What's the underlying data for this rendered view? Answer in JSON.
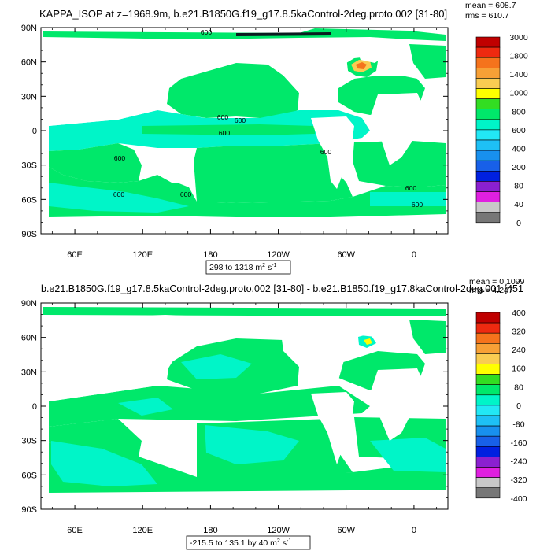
{
  "chart_data": [
    {
      "type": "contour-map",
      "title": "KAPPA_ISOP at z=1968.9m, b.e21.B1850G.f19_g17.8.5kaControl-2deg.proto.002 [31-80]",
      "stats": {
        "mean_label": "mean = 608.7",
        "rms_label": "rms = 610.7"
      },
      "x_ticks": [
        "60E",
        "120E",
        "180",
        "120W",
        "60W",
        "0"
      ],
      "y_ticks": [
        "90N",
        "60N",
        "30N",
        "0",
        "30S",
        "60S",
        "90S"
      ],
      "range_label": "298 to 1318 m",
      "range_units_sup": "2",
      "range_units_tail": " s",
      "range_units_exp": "-1",
      "contour_labels": [
        "600",
        "600",
        "600",
        "600",
        "600",
        "600",
        "600",
        "600",
        "600",
        "600"
      ],
      "colorbar": {
        "labels": [
          "3000",
          "1800",
          "1400",
          "1000",
          "800",
          "600",
          "400",
          "200",
          "80",
          "40",
          "0"
        ],
        "colors": [
          "#c00000",
          "#ee2a10",
          "#f5731c",
          "#f7a036",
          "#f9cc52",
          "#ffff00",
          "#33dd22",
          "#00e86a",
          "#00f5c8",
          "#22e8f5",
          "#1ec0f5",
          "#1890ee",
          "#1860e8",
          "#0020e0",
          "#8b20d0",
          "#e020e0",
          "#c8c8c8",
          "#777777"
        ]
      }
    },
    {
      "type": "contour-map",
      "title": "b.e21.B1850G.f19_g17.8.5kaControl-2deg.proto.002 [31-80] - b.e21.B1850.f19_g17.8kaControl-2deg.001 [451",
      "stats": {
        "mean_label": "mean = 0.1099",
        "rms_label": "rms = 4.247"
      },
      "x_ticks": [
        "60E",
        "120E",
        "180",
        "120W",
        "60W",
        "0"
      ],
      "y_ticks": [
        "90N",
        "60N",
        "30N",
        "0",
        "30S",
        "60S",
        "90S"
      ],
      "range_label": "-215.5 to 135.1 by 40 m",
      "range_units_sup": "2",
      "range_units_tail": " s",
      "range_units_exp": "-1",
      "colorbar": {
        "labels": [
          "400",
          "320",
          "240",
          "160",
          "80",
          "0",
          "-80",
          "-160",
          "-240",
          "-320",
          "-400"
        ],
        "colors": [
          "#c00000",
          "#ee2a10",
          "#f5731c",
          "#f7a036",
          "#f9cc52",
          "#ffff00",
          "#33dd22",
          "#00e86a",
          "#00f5c8",
          "#22e8f5",
          "#1ec0f5",
          "#1890ee",
          "#1860e8",
          "#0020e0",
          "#8b20d0",
          "#e020e0",
          "#c8c8c8",
          "#777777"
        ]
      }
    }
  ]
}
